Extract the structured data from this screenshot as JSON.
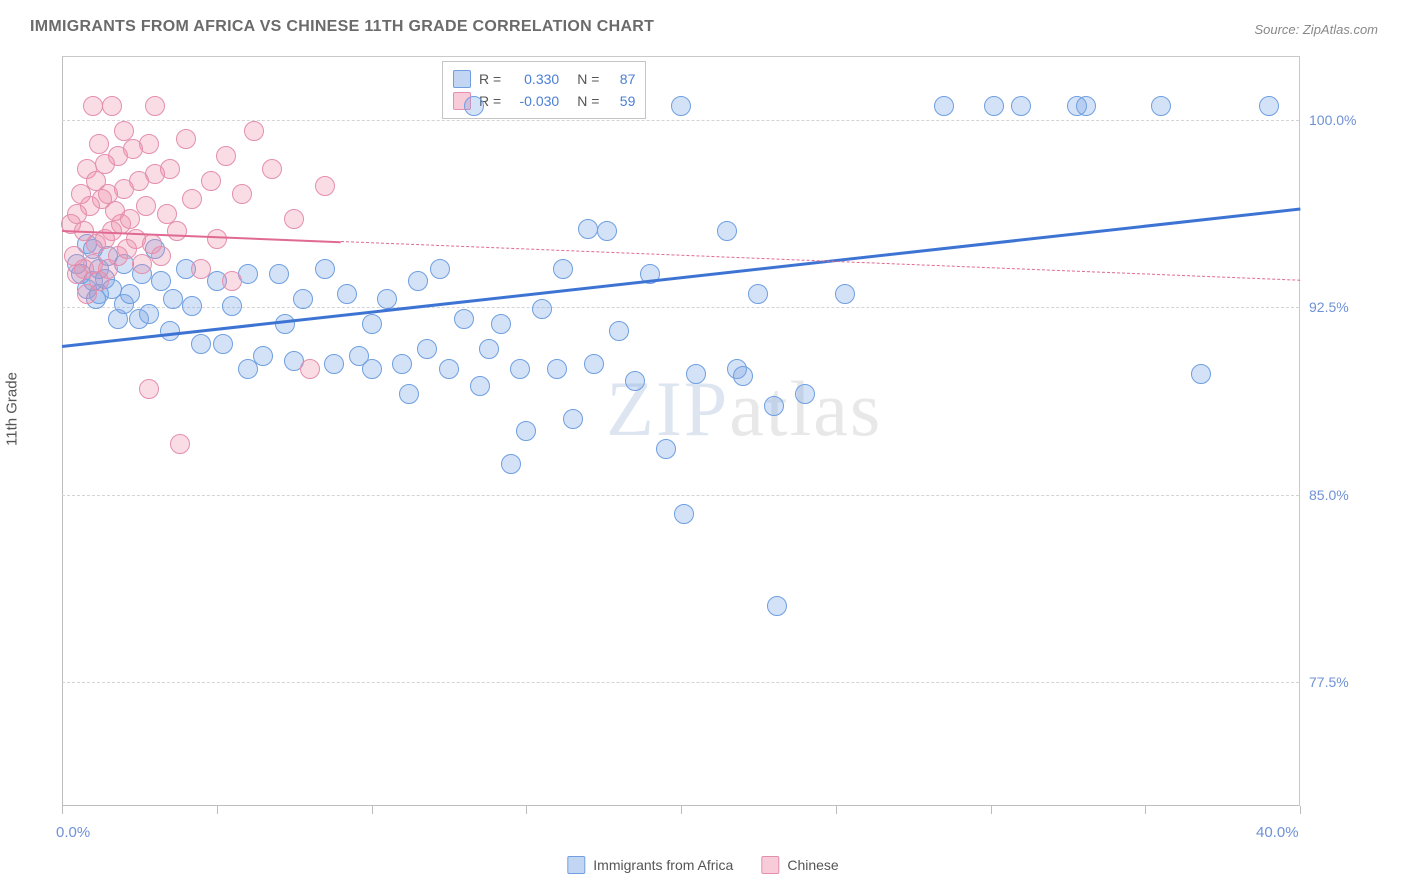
{
  "title": "IMMIGRANTS FROM AFRICA VS CHINESE 11TH GRADE CORRELATION CHART",
  "source_label": "Source: ZipAtlas.com",
  "watermark": "ZIPatlas",
  "y_axis_title": "11th Grade",
  "chart": {
    "type": "scatter",
    "xlim": [
      0,
      40
    ],
    "ylim": [
      72.5,
      102.5
    ],
    "x_min_label": "0.0%",
    "x_max_label": "40.0%",
    "xtick_step": 5,
    "y_gridlines": [
      77.5,
      85.0,
      92.5,
      100.0
    ],
    "y_gridline_labels": [
      "77.5%",
      "85.0%",
      "92.5%",
      "100.0%"
    ],
    "background_color": "#ffffff",
    "grid_color": "#d4d4d4",
    "axis_color": "#bdbdbd",
    "label_color": "#6f91d6",
    "series": [
      {
        "name": "Immigrants from Africa",
        "color_fill": "rgba(120,165,230,0.32)",
        "color_stroke": "#6f9fe0",
        "marker_radius": 10,
        "trend": {
          "x0": 0,
          "y0": 91.0,
          "x1": 40,
          "y1": 96.5,
          "solid_until_x": 40,
          "color": "#3d74d4",
          "width": 3
        },
        "R": "0.330",
        "N": "87",
        "points": [
          [
            0.5,
            94.2
          ],
          [
            0.6,
            93.8
          ],
          [
            0.8,
            95.0
          ],
          [
            0.8,
            93.2
          ],
          [
            1.0,
            94.8
          ],
          [
            1.0,
            93.5
          ],
          [
            1.1,
            92.8
          ],
          [
            1.2,
            94.0
          ],
          [
            1.2,
            93.0
          ],
          [
            1.4,
            93.6
          ],
          [
            1.5,
            94.5
          ],
          [
            1.6,
            93.2
          ],
          [
            1.8,
            92.0
          ],
          [
            2.0,
            94.2
          ],
          [
            2.0,
            92.6
          ],
          [
            2.2,
            93.0
          ],
          [
            2.5,
            92.0
          ],
          [
            2.6,
            93.8
          ],
          [
            2.8,
            92.2
          ],
          [
            3.0,
            94.8
          ],
          [
            3.2,
            93.5
          ],
          [
            3.5,
            91.5
          ],
          [
            3.6,
            92.8
          ],
          [
            4.0,
            94.0
          ],
          [
            4.2,
            92.5
          ],
          [
            4.5,
            91.0
          ],
          [
            5.0,
            93.5
          ],
          [
            5.2,
            91.0
          ],
          [
            5.5,
            92.5
          ],
          [
            6.0,
            90.0
          ],
          [
            6.0,
            93.8
          ],
          [
            6.5,
            90.5
          ],
          [
            7.0,
            93.8
          ],
          [
            7.2,
            91.8
          ],
          [
            7.5,
            90.3
          ],
          [
            7.8,
            92.8
          ],
          [
            8.5,
            94.0
          ],
          [
            8.8,
            90.2
          ],
          [
            9.2,
            93.0
          ],
          [
            9.6,
            90.5
          ],
          [
            10.0,
            90.0
          ],
          [
            10.0,
            91.8
          ],
          [
            10.5,
            92.8
          ],
          [
            11.0,
            90.2
          ],
          [
            11.2,
            89.0
          ],
          [
            11.5,
            93.5
          ],
          [
            11.8,
            90.8
          ],
          [
            12.2,
            94.0
          ],
          [
            12.5,
            90.0
          ],
          [
            13.0,
            92.0
          ],
          [
            13.5,
            89.3
          ],
          [
            13.8,
            90.8
          ],
          [
            14.2,
            91.8
          ],
          [
            14.5,
            86.2
          ],
          [
            14.8,
            90.0
          ],
          [
            15.0,
            87.5
          ],
          [
            15.5,
            92.4
          ],
          [
            16.0,
            90.0
          ],
          [
            16.2,
            94.0
          ],
          [
            16.5,
            88.0
          ],
          [
            17.0,
            95.6
          ],
          [
            17.2,
            90.2
          ],
          [
            17.6,
            95.5
          ],
          [
            18.0,
            91.5
          ],
          [
            18.5,
            89.5
          ],
          [
            19.0,
            93.8
          ],
          [
            19.5,
            86.8
          ],
          [
            20.0,
            100.5
          ],
          [
            20.1,
            84.2
          ],
          [
            20.5,
            89.8
          ],
          [
            21.5,
            95.5
          ],
          [
            21.8,
            90.0
          ],
          [
            22.0,
            89.7
          ],
          [
            22.5,
            93.0
          ],
          [
            23.0,
            88.5
          ],
          [
            23.1,
            80.5
          ],
          [
            24.0,
            89.0
          ],
          [
            25.3,
            93.0
          ],
          [
            28.5,
            100.5
          ],
          [
            30.1,
            100.5
          ],
          [
            31.0,
            100.5
          ],
          [
            32.8,
            100.5
          ],
          [
            33.1,
            100.5
          ],
          [
            35.5,
            100.5
          ],
          [
            36.8,
            89.8
          ],
          [
            39.0,
            100.5
          ],
          [
            13.3,
            100.5
          ]
        ]
      },
      {
        "name": "Chinese",
        "color_fill": "rgba(240,140,170,0.30)",
        "color_stroke": "#e48fae",
        "marker_radius": 10,
        "trend": {
          "x0": 0,
          "y0": 95.6,
          "x1": 40,
          "y1": 93.6,
          "solid_until_x": 9,
          "color": "#e06a93",
          "width": 2
        },
        "R": "-0.030",
        "N": "59",
        "points": [
          [
            0.3,
            95.8
          ],
          [
            0.4,
            94.5
          ],
          [
            0.5,
            96.2
          ],
          [
            0.5,
            93.8
          ],
          [
            0.6,
            97.0
          ],
          [
            0.7,
            94.0
          ],
          [
            0.7,
            95.5
          ],
          [
            0.8,
            98.0
          ],
          [
            0.8,
            93.0
          ],
          [
            0.9,
            96.5
          ],
          [
            1.0,
            100.5
          ],
          [
            1.0,
            94.2
          ],
          [
            1.1,
            97.5
          ],
          [
            1.1,
            95.0
          ],
          [
            1.2,
            99.0
          ],
          [
            1.2,
            93.5
          ],
          [
            1.3,
            96.8
          ],
          [
            1.4,
            95.2
          ],
          [
            1.4,
            98.2
          ],
          [
            1.5,
            94.0
          ],
          [
            1.5,
            97.0
          ],
          [
            1.6,
            100.5
          ],
          [
            1.6,
            95.5
          ],
          [
            1.7,
            96.3
          ],
          [
            1.8,
            98.5
          ],
          [
            1.8,
            94.5
          ],
          [
            1.9,
            95.8
          ],
          [
            2.0,
            97.2
          ],
          [
            2.0,
            99.5
          ],
          [
            2.1,
            94.8
          ],
          [
            2.2,
            96.0
          ],
          [
            2.3,
            98.8
          ],
          [
            2.4,
            95.2
          ],
          [
            2.5,
            97.5
          ],
          [
            2.6,
            94.2
          ],
          [
            2.7,
            96.5
          ],
          [
            2.8,
            99.0
          ],
          [
            2.8,
            89.2
          ],
          [
            2.9,
            95.0
          ],
          [
            3.0,
            97.8
          ],
          [
            3.0,
            100.5
          ],
          [
            3.2,
            94.5
          ],
          [
            3.4,
            96.2
          ],
          [
            3.5,
            98.0
          ],
          [
            3.7,
            95.5
          ],
          [
            3.8,
            87.0
          ],
          [
            4.0,
            99.2
          ],
          [
            4.2,
            96.8
          ],
          [
            4.5,
            94.0
          ],
          [
            4.8,
            97.5
          ],
          [
            5.0,
            95.2
          ],
          [
            5.3,
            98.5
          ],
          [
            5.5,
            93.5
          ],
          [
            5.8,
            97.0
          ],
          [
            6.2,
            99.5
          ],
          [
            6.8,
            98.0
          ],
          [
            7.5,
            96.0
          ],
          [
            8.0,
            90.0
          ],
          [
            8.5,
            97.3
          ]
        ]
      }
    ]
  },
  "legend_top": {
    "rows": [
      {
        "swatch_fill": "rgba(120,165,230,0.45)",
        "swatch_stroke": "#6f9fe0",
        "R": "0.330",
        "N": "87"
      },
      {
        "swatch_fill": "rgba(240,140,170,0.45)",
        "swatch_stroke": "#e48fae",
        "R": "-0.030",
        "N": "59"
      }
    ],
    "R_label": "R =",
    "N_label": "N ="
  },
  "legend_bottom": {
    "items": [
      {
        "swatch_fill": "rgba(120,165,230,0.45)",
        "swatch_stroke": "#6f9fe0",
        "label": "Immigrants from Africa"
      },
      {
        "swatch_fill": "rgba(240,140,170,0.45)",
        "swatch_stroke": "#e48fae",
        "label": "Chinese"
      }
    ]
  }
}
